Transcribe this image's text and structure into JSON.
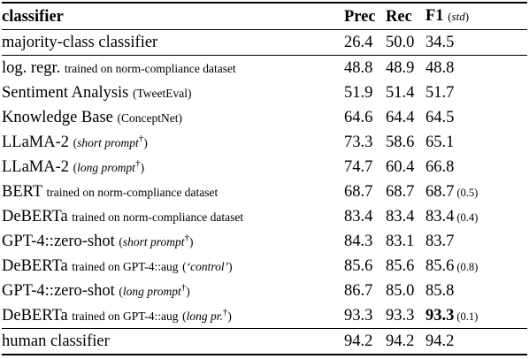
{
  "header": {
    "classifier": "classifier",
    "prec": "Prec",
    "rec": "Rec",
    "f1": "F1",
    "std": "std"
  },
  "rows": [
    {
      "name": "majority-class classifier",
      "note": "",
      "prec": "26.4",
      "rec": "50.0",
      "f1": "34.5",
      "std": ""
    },
    {
      "name": "log. regr.",
      "note": "trained on norm-compliance dataset",
      "prec": "48.8",
      "rec": "48.9",
      "f1": "48.8",
      "std": ""
    },
    {
      "name": "Sentiment Analysis",
      "note": "(TweetEval)",
      "prec": "51.9",
      "rec": "51.4",
      "f1": "51.7",
      "std": ""
    },
    {
      "name": "Knowledge Base",
      "note": "(ConceptNet)",
      "prec": "64.6",
      "rec": "64.4",
      "f1": "64.5",
      "std": ""
    },
    {
      "name": "LLaMA-2",
      "note": "short prompt",
      "prec": "73.3",
      "rec": "58.6",
      "f1": "65.1",
      "std": ""
    },
    {
      "name": "LLaMA-2",
      "note": "long prompt",
      "prec": "74.7",
      "rec": "60.4",
      "f1": "66.8",
      "std": ""
    },
    {
      "name": "BERT",
      "note": "trained on norm-compliance dataset",
      "prec": "68.7",
      "rec": "68.7",
      "f1": "68.7",
      "std": "(0.5)"
    },
    {
      "name": "DeBERTa",
      "note": "trained on norm-compliance dataset",
      "prec": "83.4",
      "rec": "83.4",
      "f1": "83.4",
      "std": "(0.4)"
    },
    {
      "name": "GPT-4::zero-shot",
      "note": "short prompt",
      "prec": "84.3",
      "rec": "83.1",
      "f1": "83.7",
      "std": ""
    },
    {
      "name": "DeBERTa",
      "note": "trained on GPT-4::aug",
      "note2": "‘control’",
      "prec": "85.6",
      "rec": "85.6",
      "f1": "85.6",
      "std": "(0.8)"
    },
    {
      "name": "GPT-4::zero-shot",
      "note": "long prompt",
      "prec": "86.7",
      "rec": "85.0",
      "f1": "85.8",
      "std": ""
    },
    {
      "name": "DeBERTa",
      "note": "trained on GPT-4::aug",
      "note2": "long pr.",
      "prec": "93.3",
      "rec": "93.3",
      "f1": "93.3",
      "std": "(0.1)"
    },
    {
      "name": "human classifier",
      "note": "",
      "prec": "94.2",
      "rec": "94.2",
      "f1": "94.2",
      "std": ""
    }
  ],
  "dagger": "†"
}
